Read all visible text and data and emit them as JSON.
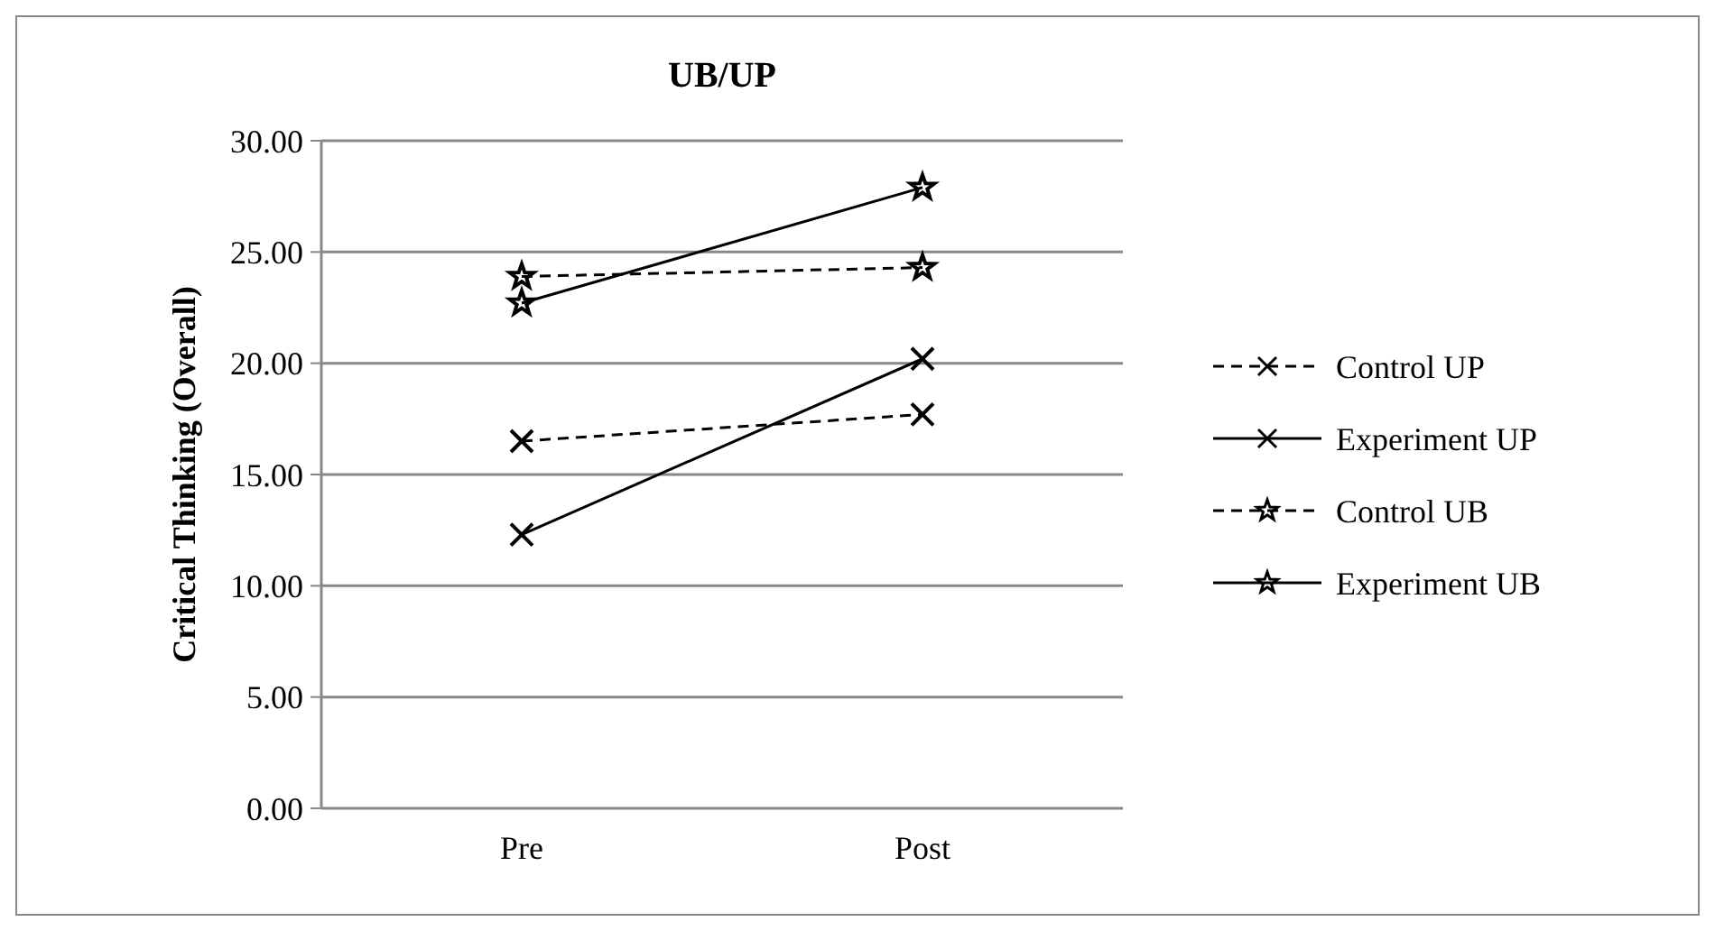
{
  "chart_data": {
    "type": "line",
    "title": "UB/UP",
    "ylabel": "Critical Thinking (Overall)",
    "categories": [
      "Pre",
      "Post"
    ],
    "series": [
      {
        "name": "Control UP",
        "color": "#000000",
        "values": [
          16.5,
          17.7
        ],
        "line_style": "dashed",
        "marker": "cross"
      },
      {
        "name": "Experiment UP",
        "color": "#000000",
        "values": [
          12.3,
          20.2
        ],
        "line_style": "solid",
        "marker": "cross"
      },
      {
        "name": "Control UB",
        "color": "#000000",
        "values": [
          23.9,
          24.3
        ],
        "line_style": "dashed",
        "marker": "star"
      },
      {
        "name": "Experiment UB",
        "color": "#000000",
        "values": [
          22.7,
          27.9
        ],
        "line_style": "solid",
        "marker": "star"
      }
    ],
    "ylim": [
      0,
      30
    ],
    "yticks": [
      {
        "value": 0,
        "label": "0.00"
      },
      {
        "value": 5,
        "label": "5.00"
      },
      {
        "value": 10,
        "label": "10.00"
      },
      {
        "value": 15,
        "label": "15.00"
      },
      {
        "value": 20,
        "label": "20.00"
      },
      {
        "value": 25,
        "label": "25.00"
      },
      {
        "value": 30,
        "label": "30.00"
      }
    ],
    "grid": "y",
    "legend": "right"
  }
}
